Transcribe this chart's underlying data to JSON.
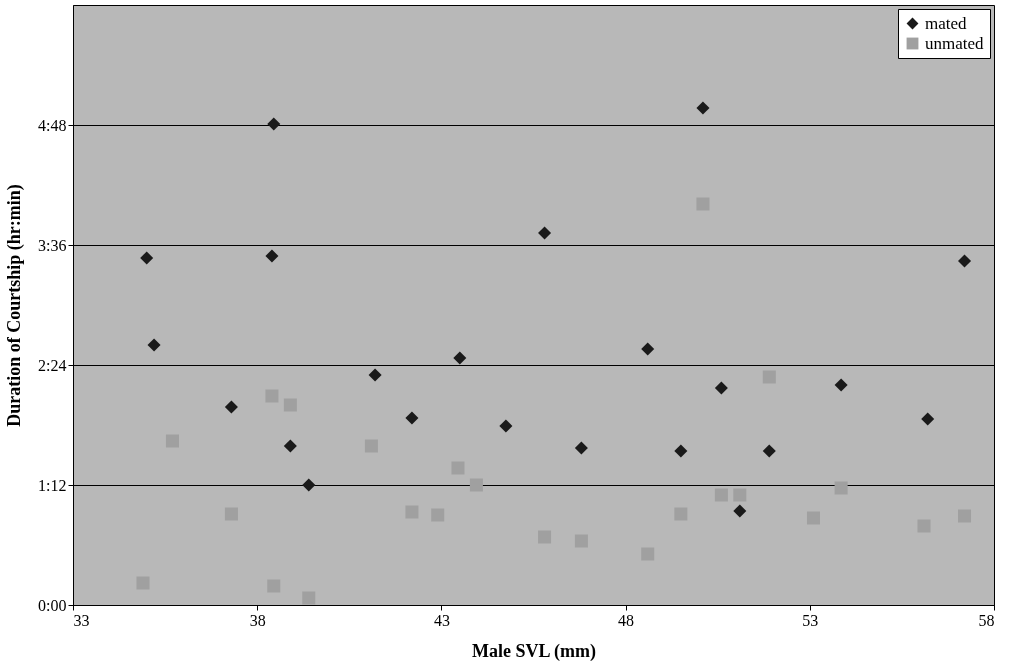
{
  "chart_data": {
    "type": "scatter",
    "xlabel": "Male SVL (mm)",
    "ylabel": "Duration of Courtship (hr:min)",
    "xlim": [
      33,
      58
    ],
    "xticks": [
      33,
      38,
      43,
      48,
      53,
      58
    ],
    "ylim": [
      0,
      6
    ],
    "yticks": [
      {
        "value": 0,
        "label": "0:00"
      },
      {
        "value": 1.2,
        "label": "1:12"
      },
      {
        "value": 2.4,
        "label": "2:24"
      },
      {
        "value": 3.6,
        "label": "3:36"
      },
      {
        "value": 4.8,
        "label": "4:48"
      }
    ],
    "grid": "y",
    "legend": "top right",
    "series": [
      {
        "name": "mated",
        "color": "#1a1a1a",
        "marker": "diamond",
        "x": [
          35.0,
          35.2,
          37.3,
          38.45,
          38.4,
          38.9,
          39.4,
          41.2,
          42.2,
          43.5,
          44.75,
          45.8,
          46.8,
          48.6,
          49.5,
          50.1,
          50.6,
          51.1,
          51.9,
          53.85,
          56.2,
          57.2
        ],
        "values": [
          3.47,
          2.6,
          1.98,
          4.81,
          3.49,
          1.59,
          1.2,
          2.3,
          1.87,
          2.47,
          1.79,
          3.72,
          1.57,
          2.56,
          1.54,
          4.97,
          2.17,
          0.94,
          1.54,
          2.2,
          1.86,
          3.44
        ]
      },
      {
        "name": "unmated",
        "color": "#a0a0a0",
        "marker": "square",
        "x": [
          34.9,
          35.7,
          37.3,
          38.4,
          38.9,
          38.45,
          39.4,
          41.1,
          42.2,
          42.9,
          43.45,
          43.95,
          45.8,
          46.8,
          48.6,
          49.5,
          50.1,
          50.6,
          51.1,
          51.9,
          53.1,
          53.85,
          56.1,
          57.2
        ],
        "values": [
          0.22,
          1.64,
          0.91,
          2.09,
          2.0,
          0.19,
          0.07,
          1.59,
          0.93,
          0.9,
          1.37,
          1.2,
          0.68,
          0.64,
          0.51,
          0.91,
          4.01,
          1.1,
          1.1,
          2.28,
          0.87,
          1.17,
          0.79,
          0.89
        ]
      }
    ]
  }
}
